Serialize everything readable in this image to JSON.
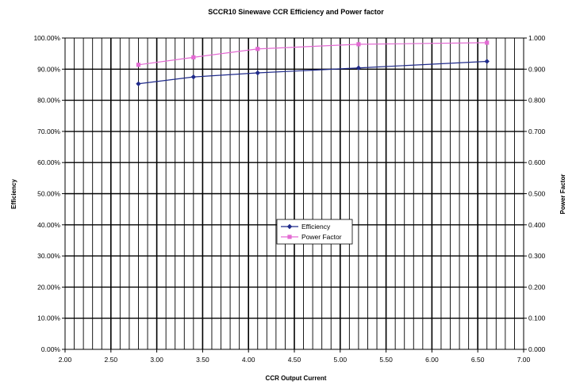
{
  "chart_data": {
    "type": "line",
    "title": "SCCR10 Sinewave CCR Efficiency and Power factor",
    "xlabel": "CCR Output Current",
    "ylabel": "Efficiency",
    "y2label": "Power Factor",
    "xlim": [
      2.0,
      7.0
    ],
    "ylim": [
      0,
      100
    ],
    "y2lim": [
      0,
      1.0
    ],
    "x_ticks": [
      "2.00",
      "2.50",
      "3.00",
      "3.50",
      "4.00",
      "4.50",
      "5.00",
      "5.50",
      "6.00",
      "6.50",
      "7.00"
    ],
    "y_ticks": [
      "0.00%",
      "10.00%",
      "20.00%",
      "30.00%",
      "40.00%",
      "50.00%",
      "60.00%",
      "70.00%",
      "80.00%",
      "90.00%",
      "100.00%"
    ],
    "y2_ticks": [
      "0.000",
      "0.100",
      "0.200",
      "0.300",
      "0.400",
      "0.500",
      "0.600",
      "0.700",
      "0.800",
      "0.900",
      "1.000"
    ],
    "grid": true,
    "minor_x_grid_step": 0.1,
    "legend_position": "center",
    "series": [
      {
        "name": "Efficiency",
        "axis": "left",
        "color": "#1f2a8a",
        "marker": "diamond",
        "x": [
          2.8,
          3.4,
          4.1,
          5.2,
          6.6
        ],
        "y": [
          85.3,
          87.5,
          88.8,
          90.4,
          92.5
        ]
      },
      {
        "name": "Power Factor",
        "axis": "right",
        "color": "#e36ad3",
        "marker": "square",
        "x": [
          2.8,
          3.4,
          4.1,
          5.2,
          6.6
        ],
        "y": [
          0.914,
          0.938,
          0.965,
          0.98,
          0.985
        ]
      }
    ]
  }
}
